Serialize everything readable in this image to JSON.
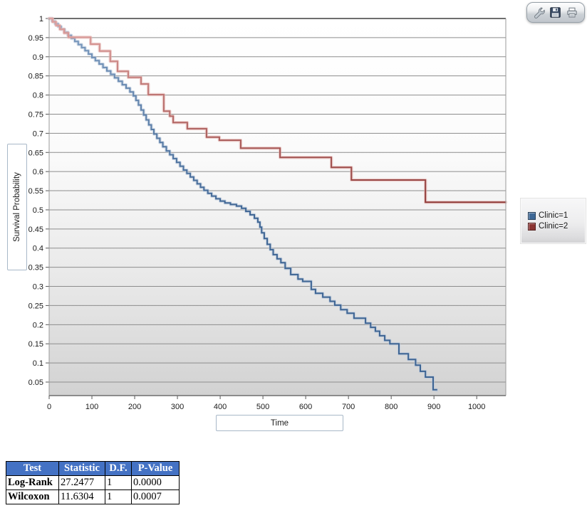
{
  "toolbar": {
    "buttons": [
      {
        "name": "tools",
        "icon": "wrench-icon"
      },
      {
        "name": "save",
        "icon": "save-icon"
      },
      {
        "name": "print",
        "icon": "printer-icon"
      }
    ]
  },
  "chart_data": {
    "type": "line",
    "subtype": "kaplan-meier-step",
    "title": "",
    "xlabel": "Time",
    "ylabel": "Survival Probability",
    "xlim": [
      0,
      1068
    ],
    "ylim": [
      0.015,
      1.0
    ],
    "x_ticks": [
      0,
      100,
      200,
      300,
      400,
      500,
      600,
      700,
      800,
      900,
      1000
    ],
    "y_ticks": [
      1,
      0.95,
      0.9,
      0.85,
      0.8,
      0.75,
      0.7,
      0.65,
      0.6,
      0.55,
      0.5,
      0.45,
      0.4,
      0.35,
      0.3,
      0.25,
      0.2,
      0.15,
      0.1,
      0.05
    ],
    "grid": "horizontal",
    "legend_position": "right",
    "plot_bg_gradient": [
      "#ffffff",
      "#d2d2d2"
    ],
    "series": [
      {
        "name": "Clinic=1",
        "color_top": "#7d9cc0",
        "color_bottom": "#3d6493",
        "halo": "#b7c7da",
        "points": [
          [
            0,
            1
          ],
          [
            7,
            0.993
          ],
          [
            14,
            0.986
          ],
          [
            21,
            0.979
          ],
          [
            28,
            0.972
          ],
          [
            36,
            0.964
          ],
          [
            44,
            0.956
          ],
          [
            52,
            0.948
          ],
          [
            60,
            0.94
          ],
          [
            68,
            0.932
          ],
          [
            76,
            0.924
          ],
          [
            84,
            0.916
          ],
          [
            92,
            0.907
          ],
          [
            100,
            0.898
          ],
          [
            108,
            0.89
          ],
          [
            117,
            0.881
          ],
          [
            126,
            0.872
          ],
          [
            135,
            0.863
          ],
          [
            144,
            0.854
          ],
          [
            153,
            0.845
          ],
          [
            162,
            0.836
          ],
          [
            171,
            0.827
          ],
          [
            180,
            0.818
          ],
          [
            189,
            0.808
          ],
          [
            197,
            0.798
          ],
          [
            203,
            0.786
          ],
          [
            209,
            0.774
          ],
          [
            215,
            0.761
          ],
          [
            221,
            0.748
          ],
          [
            227,
            0.735
          ],
          [
            233,
            0.722
          ],
          [
            239,
            0.71
          ],
          [
            245,
            0.698
          ],
          [
            252,
            0.687
          ],
          [
            259,
            0.676
          ],
          [
            266,
            0.665
          ],
          [
            274,
            0.654
          ],
          [
            282,
            0.644
          ],
          [
            290,
            0.634
          ],
          [
            298,
            0.624
          ],
          [
            306,
            0.614
          ],
          [
            314,
            0.604
          ],
          [
            322,
            0.595
          ],
          [
            330,
            0.586
          ],
          [
            338,
            0.577
          ],
          [
            346,
            0.568
          ],
          [
            354,
            0.559
          ],
          [
            362,
            0.551
          ],
          [
            371,
            0.543
          ],
          [
            380,
            0.536
          ],
          [
            390,
            0.529
          ],
          [
            400,
            0.523
          ],
          [
            411,
            0.518
          ],
          [
            424,
            0.514
          ],
          [
            438,
            0.51
          ],
          [
            450,
            0.504
          ],
          [
            460,
            0.496
          ],
          [
            470,
            0.487
          ],
          [
            480,
            0.478
          ],
          [
            488,
            0.468
          ],
          [
            493,
            0.455
          ],
          [
            497,
            0.44
          ],
          [
            503,
            0.425
          ],
          [
            510,
            0.41
          ],
          [
            517,
            0.396
          ],
          [
            524,
            0.383
          ],
          [
            533,
            0.372
          ],
          [
            542,
            0.362
          ],
          [
            552,
            0.347
          ],
          [
            565,
            0.331
          ],
          [
            582,
            0.319
          ],
          [
            593,
            0.313
          ],
          [
            613,
            0.292
          ],
          [
            623,
            0.282
          ],
          [
            640,
            0.272
          ],
          [
            657,
            0.261
          ],
          [
            668,
            0.251
          ],
          [
            682,
            0.239
          ],
          [
            697,
            0.23
          ],
          [
            713,
            0.217
          ],
          [
            740,
            0.204
          ],
          [
            752,
            0.193
          ],
          [
            763,
            0.183
          ],
          [
            773,
            0.171
          ],
          [
            785,
            0.159
          ],
          [
            797,
            0.15
          ],
          [
            818,
            0.124
          ],
          [
            840,
            0.109
          ],
          [
            857,
            0.094
          ],
          [
            868,
            0.078
          ],
          [
            880,
            0.063
          ],
          [
            898,
            0.03
          ],
          [
            906,
            0.028
          ]
        ]
      },
      {
        "name": "Clinic=2",
        "color_top": "#dfa09e",
        "color_bottom": "#8a3331",
        "halo": "#e5b5b3",
        "points": [
          [
            0,
            1
          ],
          [
            8,
            0.991
          ],
          [
            16,
            0.982
          ],
          [
            25,
            0.972
          ],
          [
            35,
            0.962
          ],
          [
            45,
            0.951
          ],
          [
            97,
            0.933
          ],
          [
            118,
            0.915
          ],
          [
            143,
            0.888
          ],
          [
            160,
            0.862
          ],
          [
            185,
            0.846
          ],
          [
            215,
            0.829
          ],
          [
            232,
            0.801
          ],
          [
            268,
            0.758
          ],
          [
            282,
            0.745
          ],
          [
            290,
            0.728
          ],
          [
            323,
            0.712
          ],
          [
            368,
            0.69
          ],
          [
            398,
            0.682
          ],
          [
            448,
            0.661
          ],
          [
            540,
            0.637
          ],
          [
            660,
            0.611
          ],
          [
            707,
            0.578
          ],
          [
            880,
            0.52
          ],
          [
            1068,
            0.52
          ]
        ]
      }
    ]
  },
  "legend": {
    "items": [
      {
        "label": "Clinic=1",
        "color": "#3e6896"
      },
      {
        "label": "Clinic=2",
        "color": "#8c3533"
      }
    ]
  },
  "stats_table": {
    "header_bg": "#4472C4",
    "headers": [
      "Test",
      "Statistic",
      "D.F.",
      "P-Value"
    ],
    "rows": [
      [
        "Log-Rank",
        "27.2477",
        "1",
        "0.0000"
      ],
      [
        "Wilcoxon",
        "11.6304",
        "1",
        "0.0007"
      ]
    ]
  }
}
